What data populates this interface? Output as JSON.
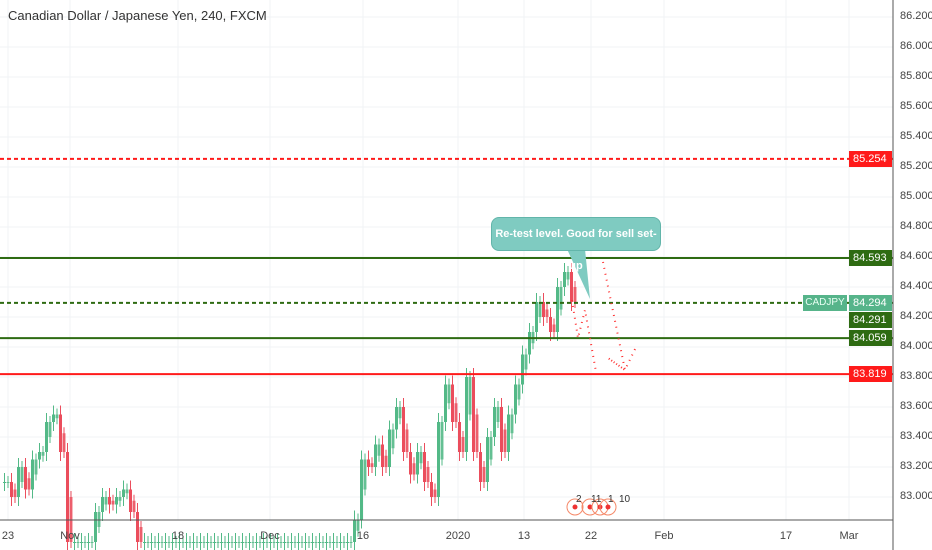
{
  "title": "Canadian Dollar / Japanese Yen, 240, FXCM",
  "symbol": "CADJPY",
  "callout": "Re-test level. Good for sell set-up",
  "y_axis": [
    "86.200",
    "86.000",
    "85.800",
    "85.600",
    "85.400",
    "85.200",
    "85.000",
    "84.800",
    "84.600",
    "84.400",
    "84.200",
    "84.000",
    "83.800",
    "83.600",
    "83.400",
    "83.200",
    "83.000"
  ],
  "x_axis": [
    {
      "label": "23",
      "p": 8
    },
    {
      "label": "Nov",
      "p": 70
    },
    {
      "label": "18",
      "p": 178
    },
    {
      "label": "Dec",
      "p": 270
    },
    {
      "label": "16",
      "p": 363
    },
    {
      "label": "2020",
      "p": 458
    },
    {
      "label": "13",
      "p": 524
    },
    {
      "label": "22",
      "p": 591
    },
    {
      "label": "Feb",
      "p": 664
    },
    {
      "label": "17",
      "p": 786
    },
    {
      "label": "Mar",
      "p": 849
    }
  ],
  "levels": [
    {
      "price": 85.254,
      "label": "85.254",
      "color": "#ff1a1a",
      "style": "dashed"
    },
    {
      "price": 84.593,
      "label": "84.593",
      "color": "#2e6b12",
      "style": "solid"
    },
    {
      "price": 84.294,
      "label": "84.294",
      "color": "#2e6b12",
      "style": "dashed"
    },
    {
      "price": 84.059,
      "label": "84.059",
      "color": "#2e6b12",
      "style": "solid"
    },
    {
      "price": 83.819,
      "label": "83.819",
      "color": "#ff1a1a",
      "style": "solid"
    }
  ],
  "current_price": "84.291",
  "events": [
    "2",
    "11",
    "1",
    "10"
  ],
  "colors": {
    "up": "#53b987",
    "down": "#eb4d5c",
    "axis": "#555"
  },
  "closes": [
    83.1,
    83.0,
    83.2,
    83.05,
    83.25,
    83.3,
    83.5,
    83.55,
    83.3,
    82.7,
    82.7,
    82.7,
    82.7,
    82.9,
    83.0,
    82.95,
    83.0,
    83.05,
    82.9,
    82.7,
    82.7,
    82.7,
    82.7,
    82.7,
    82.7,
    82.7,
    82.7,
    82.7,
    82.7,
    82.7,
    82.7,
    82.7,
    82.7,
    82.7,
    82.7,
    82.7,
    82.7,
    82.7,
    82.7,
    82.7,
    82.7,
    82.7,
    82.7,
    82.7,
    82.7,
    82.7,
    82.7,
    82.7,
    82.7,
    82.7,
    82.85,
    83.25,
    83.2,
    83.35,
    83.2,
    83.45,
    83.6,
    83.3,
    83.15,
    83.3,
    83.1,
    83.0,
    83.5,
    83.75,
    83.5,
    83.3,
    83.8,
    83.3,
    83.1,
    83.4,
    83.6,
    83.3,
    83.55,
    83.75,
    83.95,
    84.1,
    84.3,
    84.2,
    84.1,
    84.4,
    84.5,
    84.3
  ]
}
